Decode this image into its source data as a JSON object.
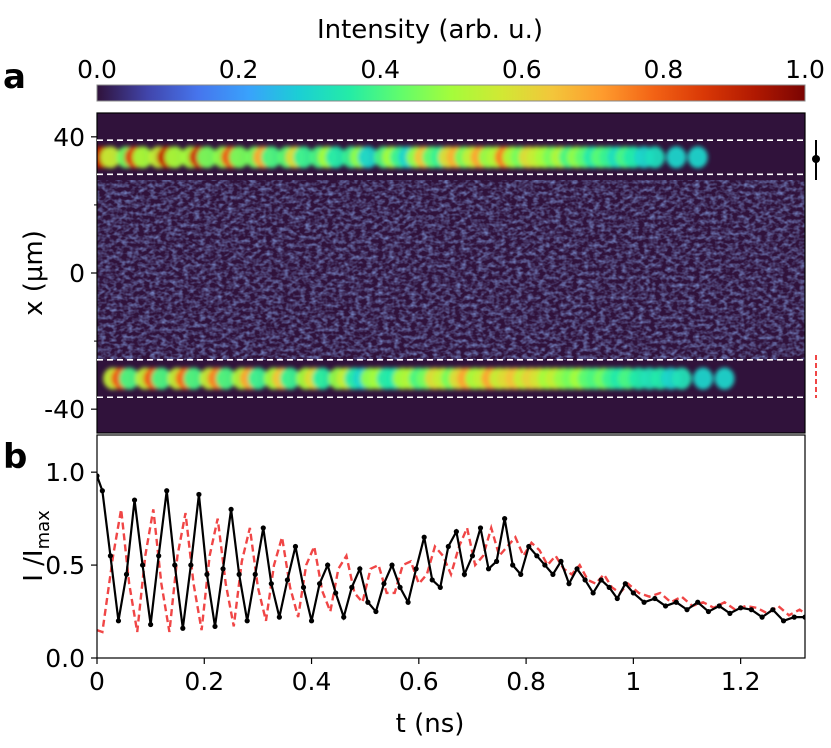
{
  "colorbar": {
    "label": "Intensity (arb. u.)",
    "ticks": [
      "0.0",
      "0.2",
      "0.4",
      "0.6",
      "0.8",
      "1.0"
    ],
    "range": [
      0,
      1
    ],
    "colormap": [
      "#30123b",
      "#4145ab",
      "#4675ed",
      "#39a2fc",
      "#1bcfd4",
      "#24eca6",
      "#61fc6c",
      "#a4fc3b",
      "#d1e834",
      "#f3c63a",
      "#fe9b2d",
      "#f36315",
      "#d93806",
      "#b11901",
      "#7a0402"
    ]
  },
  "panel_a": {
    "letter": "a",
    "ylabel": "x (µm)",
    "yticks": [
      "40",
      "0",
      "-40"
    ],
    "ylim": [
      -47,
      47
    ],
    "background_color": "#30123b",
    "bands": [
      {
        "center_um": 34,
        "width_um": 10,
        "marker": "black-dot-errorbar"
      },
      {
        "center_um": -31,
        "width_um": 11,
        "marker": "red-dashed-line"
      }
    ]
  },
  "panel_b": {
    "letter": "b",
    "ylabel_main": "I /I",
    "ylabel_sub": "max",
    "xlabel": "t (ns)",
    "xticks": [
      "0",
      "0.2",
      "0.4",
      "0.6",
      "0.8",
      "1",
      "1.2"
    ],
    "yticks": [
      "0.0",
      "0.5",
      "1.0"
    ]
  },
  "chart_data": {
    "type": "line",
    "xlabel": "t (ns)",
    "ylabel": "I /I max",
    "xlim": [
      0,
      1.32
    ],
    "ylim": [
      0,
      1.2
    ],
    "grid": false,
    "series": [
      {
        "color": "#000000",
        "style": "solid-with-dots",
        "x": [
          0,
          0.01,
          0.025,
          0.04,
          0.055,
          0.07,
          0.085,
          0.1,
          0.115,
          0.13,
          0.145,
          0.16,
          0.175,
          0.19,
          0.205,
          0.22,
          0.235,
          0.25,
          0.265,
          0.28,
          0.295,
          0.31,
          0.325,
          0.34,
          0.355,
          0.37,
          0.385,
          0.4,
          0.415,
          0.43,
          0.445,
          0.46,
          0.475,
          0.49,
          0.505,
          0.52,
          0.535,
          0.55,
          0.565,
          0.58,
          0.595,
          0.61,
          0.625,
          0.64,
          0.655,
          0.67,
          0.685,
          0.7,
          0.715,
          0.73,
          0.745,
          0.76,
          0.775,
          0.79,
          0.805,
          0.82,
          0.835,
          0.85,
          0.865,
          0.88,
          0.895,
          0.91,
          0.925,
          0.94,
          0.955,
          0.97,
          0.985,
          1.0,
          1.02,
          1.04,
          1.06,
          1.08,
          1.1,
          1.12,
          1.14,
          1.16,
          1.18,
          1.2,
          1.22,
          1.24,
          1.26,
          1.28,
          1.3,
          1.32
        ],
        "y": [
          0.98,
          0.9,
          0.55,
          0.2,
          0.45,
          0.85,
          0.5,
          0.18,
          0.55,
          0.9,
          0.5,
          0.16,
          0.5,
          0.88,
          0.45,
          0.17,
          0.48,
          0.8,
          0.45,
          0.2,
          0.45,
          0.7,
          0.4,
          0.22,
          0.42,
          0.6,
          0.38,
          0.2,
          0.4,
          0.5,
          0.35,
          0.22,
          0.38,
          0.48,
          0.3,
          0.25,
          0.4,
          0.5,
          0.38,
          0.3,
          0.48,
          0.65,
          0.42,
          0.38,
          0.6,
          0.68,
          0.45,
          0.55,
          0.7,
          0.48,
          0.52,
          0.75,
          0.5,
          0.45,
          0.6,
          0.55,
          0.5,
          0.45,
          0.52,
          0.4,
          0.48,
          0.42,
          0.35,
          0.42,
          0.38,
          0.32,
          0.4,
          0.35,
          0.3,
          0.32,
          0.28,
          0.3,
          0.26,
          0.3,
          0.25,
          0.28,
          0.24,
          0.27,
          0.26,
          0.22,
          0.26,
          0.2,
          0.22,
          0.22
        ]
      },
      {
        "color": "#f04646",
        "style": "dashed",
        "x": [
          0,
          0.01,
          0.03,
          0.045,
          0.06,
          0.075,
          0.09,
          0.105,
          0.12,
          0.135,
          0.15,
          0.165,
          0.18,
          0.195,
          0.21,
          0.225,
          0.24,
          0.255,
          0.27,
          0.285,
          0.3,
          0.315,
          0.33,
          0.345,
          0.36,
          0.375,
          0.39,
          0.405,
          0.42,
          0.435,
          0.45,
          0.465,
          0.48,
          0.495,
          0.51,
          0.525,
          0.54,
          0.555,
          0.57,
          0.585,
          0.6,
          0.615,
          0.63,
          0.645,
          0.66,
          0.675,
          0.69,
          0.705,
          0.72,
          0.735,
          0.75,
          0.765,
          0.78,
          0.795,
          0.81,
          0.825,
          0.84,
          0.855,
          0.87,
          0.885,
          0.9,
          0.915,
          0.93,
          0.945,
          0.96,
          0.975,
          0.99,
          1.01,
          1.03,
          1.05,
          1.07,
          1.09,
          1.11,
          1.13,
          1.15,
          1.17,
          1.19,
          1.21,
          1.23,
          1.25,
          1.27,
          1.29,
          1.31,
          1.32
        ],
        "y": [
          0.15,
          0.14,
          0.55,
          0.8,
          0.4,
          0.14,
          0.55,
          0.8,
          0.4,
          0.14,
          0.55,
          0.78,
          0.4,
          0.15,
          0.55,
          0.75,
          0.4,
          0.17,
          0.52,
          0.7,
          0.38,
          0.2,
          0.5,
          0.65,
          0.38,
          0.22,
          0.5,
          0.6,
          0.36,
          0.25,
          0.48,
          0.55,
          0.35,
          0.3,
          0.48,
          0.5,
          0.35,
          0.35,
          0.5,
          0.52,
          0.4,
          0.45,
          0.6,
          0.55,
          0.45,
          0.6,
          0.7,
          0.5,
          0.55,
          0.7,
          0.55,
          0.6,
          0.65,
          0.55,
          0.62,
          0.58,
          0.5,
          0.55,
          0.48,
          0.45,
          0.5,
          0.42,
          0.4,
          0.45,
          0.38,
          0.35,
          0.4,
          0.35,
          0.33,
          0.35,
          0.3,
          0.33,
          0.28,
          0.3,
          0.27,
          0.3,
          0.26,
          0.28,
          0.27,
          0.24,
          0.28,
          0.23,
          0.26,
          0.24
        ]
      }
    ]
  }
}
